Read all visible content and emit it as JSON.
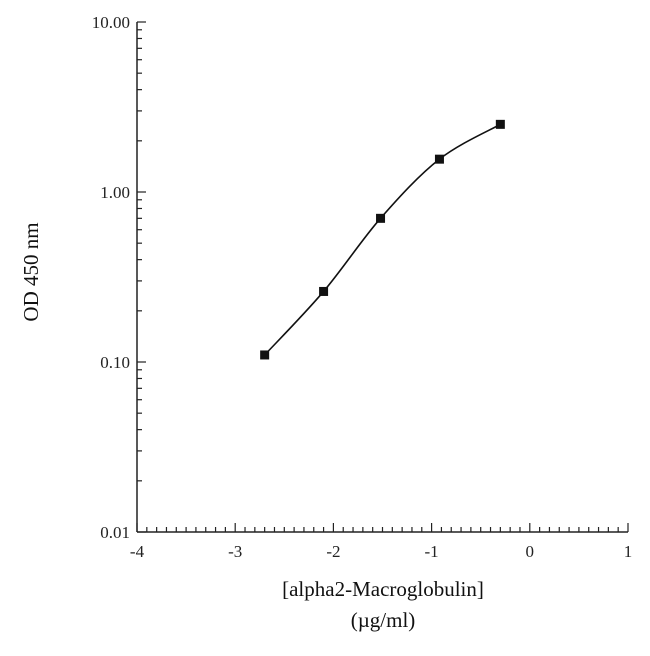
{
  "chart_data": {
    "type": "line",
    "title": "",
    "xlabel": "[alpha2-Macroglobulin]",
    "xlabel_units": "(µg/ml)",
    "ylabel": "OD 450 nm",
    "xlim": [
      -4,
      1
    ],
    "ylim": [
      0.01,
      10
    ],
    "yscale": "log",
    "x_ticks": [
      -4,
      -3,
      -2,
      -1,
      0,
      1
    ],
    "x_tick_labels": [
      "-4",
      "-3",
      "-2",
      "-1",
      "0",
      "1"
    ],
    "y_ticks": [
      0.01,
      0.1,
      1,
      10
    ],
    "y_tick_labels": [
      "0.01",
      "0.10",
      "1.00",
      "10.00"
    ],
    "grid": false,
    "series": [
      {
        "x": [
          -2.7,
          -2.1,
          -1.52,
          -0.92,
          -0.3
        ],
        "y": [
          0.11,
          0.26,
          0.7,
          1.56,
          2.5
        ],
        "marker": "square",
        "color": "#111111"
      }
    ]
  }
}
